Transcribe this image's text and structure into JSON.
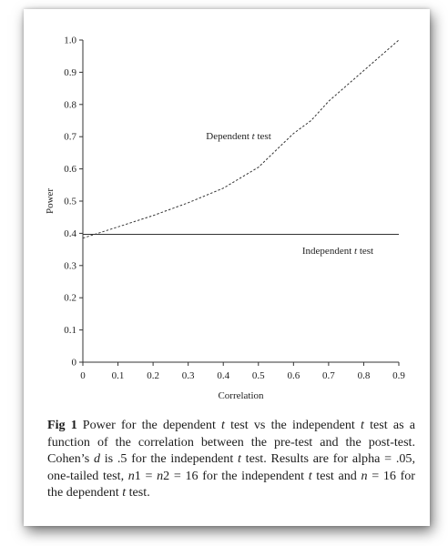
{
  "chart_data": {
    "type": "line",
    "title": "",
    "xlabel": "Correlation",
    "ylabel": "Power",
    "xlim": [
      0,
      0.9
    ],
    "ylim": [
      0,
      1.0
    ],
    "x_ticks": [
      "0",
      "0.1",
      "0.2",
      "0.3",
      "0.4",
      "0.5",
      "0.6",
      "0.7",
      "0.8",
      "0.9"
    ],
    "y_ticks": [
      "0",
      "0.1",
      "0.2",
      "0.3",
      "0.4",
      "0.5",
      "0.6",
      "0.7",
      "0.8",
      "0.9",
      "1.0"
    ],
    "grid": false,
    "series": [
      {
        "name": "Dependent t test",
        "name_parts": [
          "Dependent ",
          "t",
          " test"
        ],
        "style": "dashed",
        "x": [
          0,
          0.1,
          0.2,
          0.3,
          0.4,
          0.5,
          0.6,
          0.65,
          0.7,
          0.8,
          0.9
        ],
        "y": [
          0.385,
          0.42,
          0.455,
          0.495,
          0.54,
          0.605,
          0.71,
          0.75,
          0.81,
          0.905,
          1.0
        ]
      },
      {
        "name": "Independent t test",
        "name_parts": [
          "Independent ",
          "t",
          " test"
        ],
        "style": "solid",
        "x": [
          0,
          0.9
        ],
        "y": [
          0.397,
          0.397
        ]
      }
    ]
  },
  "caption": {
    "label": "Fig 1",
    "parts": [
      {
        "t": "Power for the dependent "
      },
      {
        "t": "t",
        "i": true
      },
      {
        "t": " test vs the independent "
      },
      {
        "t": "t",
        "i": true
      },
      {
        "t": " test as a function of the correlation between the pre-test and the post-test. Cohen’s "
      },
      {
        "t": "d",
        "i": true
      },
      {
        "t": " is .5 for the independent "
      },
      {
        "t": "t",
        "i": true
      },
      {
        "t": " test. Results are for alpha = .05, one-tailed test, "
      },
      {
        "t": "n",
        "i": true
      },
      {
        "t": "1 = "
      },
      {
        "t": "n",
        "i": true
      },
      {
        "t": "2 = 16 for the independent "
      },
      {
        "t": "t",
        "i": true
      },
      {
        "t": " test and "
      },
      {
        "t": "n",
        "i": true
      },
      {
        "t": " = 16 for the dependent "
      },
      {
        "t": "t",
        "i": true
      },
      {
        "t": " test."
      }
    ]
  }
}
